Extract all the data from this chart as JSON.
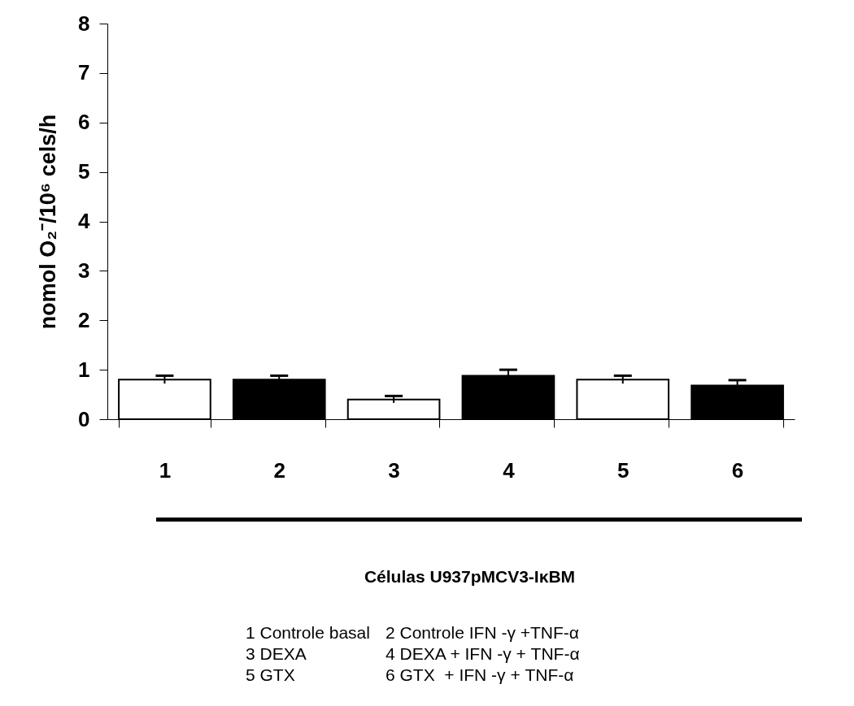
{
  "chart_data": {
    "type": "bar",
    "xlabel": "Células U937pMCV3-IκBM",
    "ylabel": "nomol O₂⁻/10⁶ cels/h",
    "categories": [
      "1",
      "2",
      "3",
      "4",
      "5",
      "6"
    ],
    "values": [
      0.8,
      0.8,
      0.4,
      0.88,
      0.8,
      0.68
    ],
    "errors": [
      0.08,
      0.08,
      0.07,
      0.12,
      0.08,
      0.11
    ],
    "colors": [
      "#ffffff",
      "#000000",
      "#ffffff",
      "#000000",
      "#ffffff",
      "#000000"
    ],
    "ylim": [
      0,
      8
    ],
    "yticks": [
      0,
      1,
      2,
      3,
      4,
      5,
      6,
      7,
      8
    ],
    "annotations": [
      "1 Controle basal",
      "2 Controle IFN -γ +TNF-α",
      "3 DEXA",
      "4 DEXA + IFN -γ + TNF-α",
      "5 GTX",
      "6 GTX  + IFN -γ + TNF-α"
    ]
  }
}
